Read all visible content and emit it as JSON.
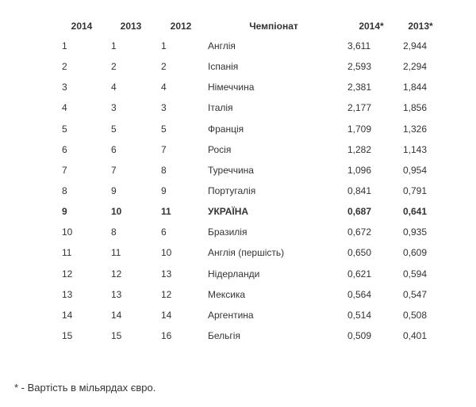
{
  "table": {
    "header": [
      "2014",
      "2013",
      "2012",
      "Чемпіонат",
      "2014*",
      "2013*"
    ],
    "rows": [
      [
        "1",
        "1",
        "1",
        "Англія",
        "3,611",
        "2,944"
      ],
      [
        "2",
        "2",
        "2",
        "Іспанія",
        "2,593",
        "2,294"
      ],
      [
        "3",
        "4",
        "4",
        "Німеччина",
        "2,381",
        "1,844"
      ],
      [
        "4",
        "3",
        "3",
        "Італія",
        "2,177",
        "1,856"
      ],
      [
        "5",
        "5",
        "5",
        "Франція",
        "1,709",
        "1,326"
      ],
      [
        "6",
        "6",
        "7",
        "Росія",
        "1,282",
        "1,143"
      ],
      [
        "7",
        "7",
        "8",
        "Туреччина",
        "1,096",
        "0,954"
      ],
      [
        "8",
        "9",
        "9",
        "Португалія",
        "0,841",
        "0,791"
      ],
      [
        "9",
        "10",
        "11",
        "УКРАЇНА",
        "0,687",
        "0,641"
      ],
      [
        "10",
        "8",
        "6",
        "Бразилія",
        "0,672",
        "0,935"
      ],
      [
        "11",
        "11",
        "10",
        "Англія (першість)",
        "0,650",
        "0,609"
      ],
      [
        "12",
        "12",
        "13",
        "Нідерланди",
        "0,621",
        "0,594"
      ],
      [
        "13",
        "13",
        "12",
        "Мексика",
        "0,564",
        "0,547"
      ],
      [
        "14",
        "14",
        "14",
        "Аргентина",
        "0,514",
        "0,508"
      ],
      [
        "15",
        "15",
        "16",
        "Бельгія",
        "0,509",
        "0,401"
      ]
    ],
    "emphasized_row": 8
  },
  "footnote": "* - Вартість в мільярдах євро."
}
